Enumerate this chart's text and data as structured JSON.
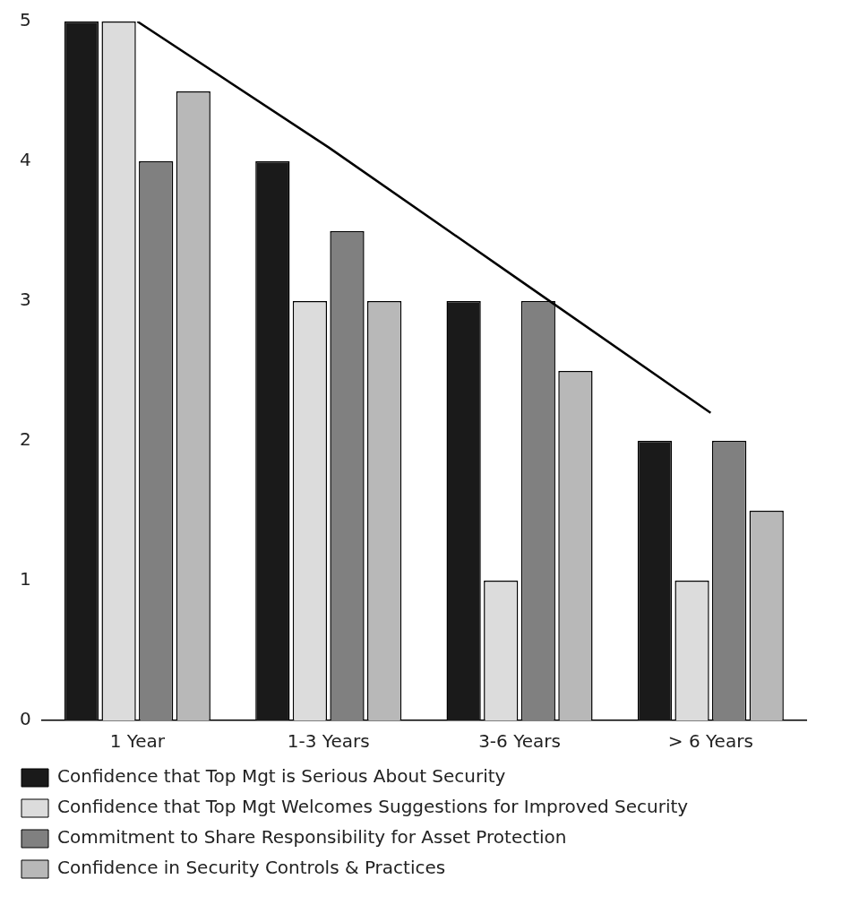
{
  "chart_data": {
    "type": "bar",
    "categories": [
      "1 Year",
      "1-3 Years",
      "3-6 Years",
      "> 6 Years"
    ],
    "series": [
      {
        "name": "Confidence that Top Mgt is Serious About Security",
        "color": "#1a1a1a",
        "values": [
          5,
          4,
          3,
          2
        ]
      },
      {
        "name": "Confidence that Top Mgt Welcomes Suggestions for Improved Security",
        "color": "#dcdcdc",
        "values": [
          5,
          3,
          1,
          1
        ]
      },
      {
        "name": "Commitment to Share Responsibility for Asset Protection",
        "color": "#808080",
        "values": [
          4,
          3.5,
          3,
          2
        ]
      },
      {
        "name": "Confidence in Security Controls & Practices",
        "color": "#b8b8b8",
        "values": [
          4.5,
          3,
          2.5,
          1.5
        ]
      },
      {
        "type": "line",
        "color": "#000000",
        "values": [
          5,
          4.1,
          3.15,
          2.2
        ]
      }
    ],
    "ylim": [
      0,
      5
    ],
    "yticks": [
      0,
      1,
      2,
      3,
      4,
      5
    ],
    "grid": false,
    "legend": "bottom",
    "marker": "none"
  }
}
